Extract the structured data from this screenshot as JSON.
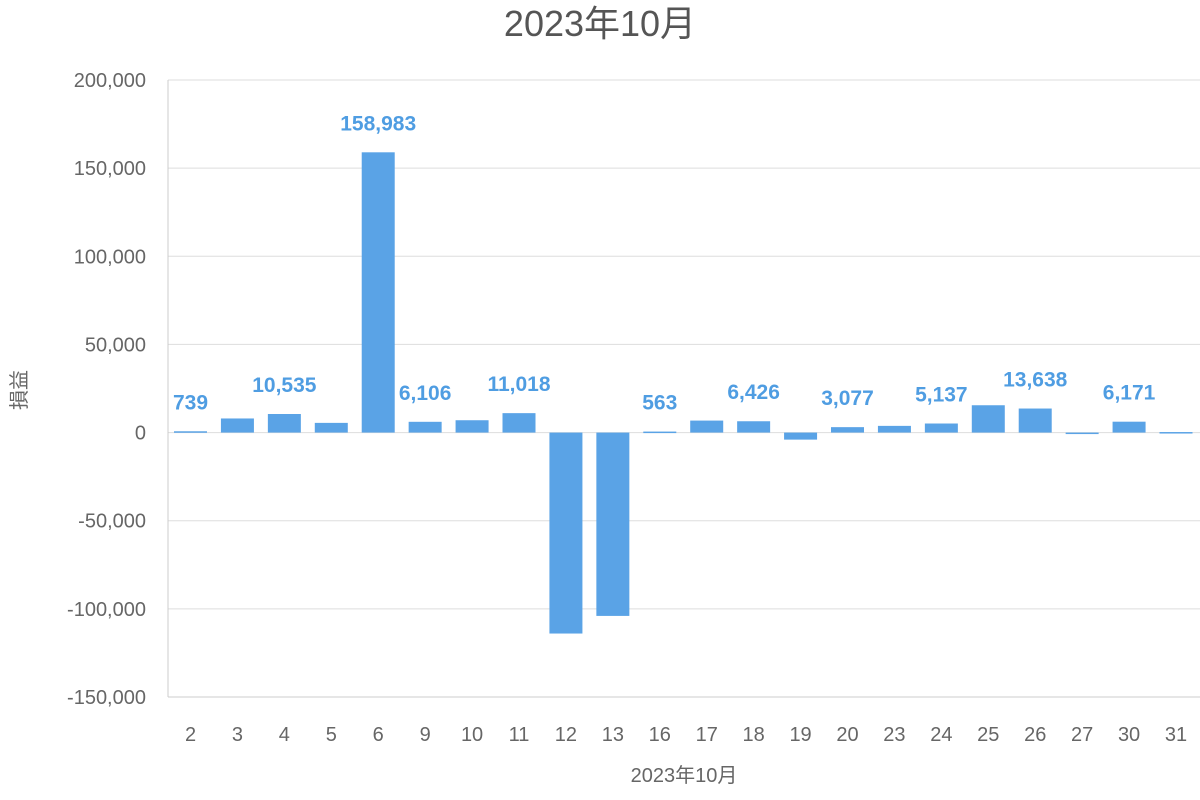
{
  "chart_data": {
    "type": "bar",
    "title": "2023年10月",
    "xlabel": "2023年10月",
    "ylabel": "損益",
    "ylim": [
      -150000,
      200000
    ],
    "yticks": [
      200000,
      150000,
      100000,
      50000,
      0,
      -50000,
      -100000,
      -150000
    ],
    "ytick_labels": [
      "200,000",
      "150,000",
      "100,000",
      "50,000",
      "0",
      "-50,000",
      "-100,000",
      "-150,000"
    ],
    "grid": true,
    "bar_color": "#5aa3e6",
    "categories": [
      "2",
      "3",
      "4",
      "5",
      "6",
      "9",
      "10",
      "11",
      "12",
      "13",
      "16",
      "17",
      "18",
      "19",
      "20",
      "23",
      "24",
      "25",
      "26",
      "27",
      "30",
      "31"
    ],
    "values": [
      739,
      8000,
      10535,
      5500,
      158983,
      6106,
      7000,
      11018,
      -114000,
      -104000,
      563,
      6800,
      6426,
      -4000,
      3077,
      3800,
      5137,
      15500,
      13638,
      -500,
      6171,
      300
    ],
    "data_labels": [
      "739",
      "",
      "10,535",
      "",
      "158,983",
      "6,106",
      "",
      "11,018",
      "",
      "",
      "563",
      "",
      "6,426",
      "",
      "3,077",
      "",
      "5,137",
      "",
      "13,638",
      "",
      "6,171",
      ""
    ]
  }
}
